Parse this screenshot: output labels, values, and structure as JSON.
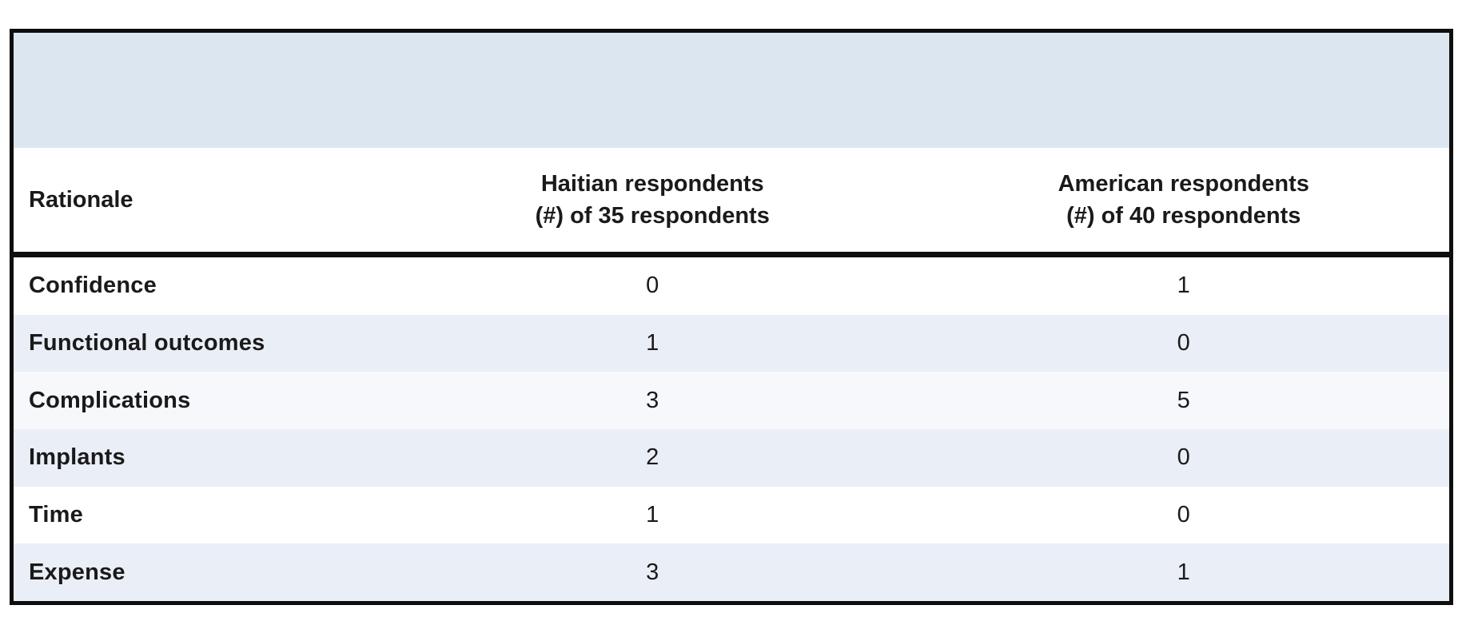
{
  "table": {
    "band_color": "#dce6f1",
    "frame_border_color": "#0e0e0e",
    "text_color": "#1a1a1a",
    "row_shades": {
      "white": "#ffffff",
      "blue": "#eaeef7",
      "faint": "#f6f8fc"
    },
    "header": {
      "rationale_label": "Rationale",
      "haitian_line1": "Haitian respondents",
      "haitian_line2": "(#) of 35 respondents",
      "american_line1": "American respondents",
      "american_line2": "(#) of 40 respondents"
    },
    "rows": [
      {
        "rationale": "Confidence",
        "haitian": "0",
        "american": "1",
        "shade": "white"
      },
      {
        "rationale": "Functional outcomes",
        "haitian": "1",
        "american": "0",
        "shade": "blue"
      },
      {
        "rationale": "Complications",
        "haitian": "3",
        "american": "5",
        "shade": "faint"
      },
      {
        "rationale": "Implants",
        "haitian": "2",
        "american": "0",
        "shade": "blue"
      },
      {
        "rationale": "Time",
        "haitian": "1",
        "american": "0",
        "shade": "white"
      },
      {
        "rationale": "Expense",
        "haitian": "3",
        "american": "1",
        "shade": "blue"
      }
    ]
  }
}
